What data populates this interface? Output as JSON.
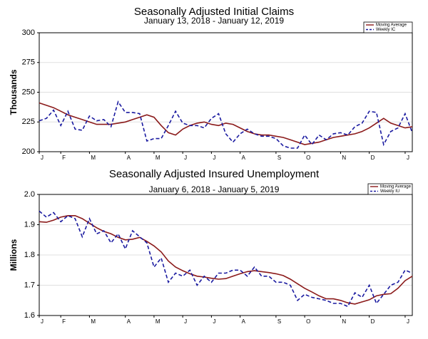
{
  "chart_data": [
    {
      "type": "line",
      "title": "Seasonally Adjusted Initial Claims",
      "subtitle": "January 13, 2018 - January 12, 2019",
      "y_label": "Thousands",
      "categories": [
        "J",
        null,
        null,
        "F",
        null,
        null,
        null,
        "M",
        null,
        null,
        null,
        null,
        "A",
        null,
        null,
        null,
        "M",
        null,
        null,
        null,
        "J",
        null,
        null,
        null,
        "J",
        null,
        null,
        null,
        "A",
        null,
        null,
        null,
        null,
        "S",
        null,
        null,
        null,
        "O",
        null,
        null,
        null,
        null,
        "N",
        null,
        null,
        null,
        "D",
        null,
        null,
        null,
        null,
        "J",
        null
      ],
      "ylim": [
        200,
        300
      ],
      "yticks": [
        200,
        225,
        250,
        275,
        300
      ],
      "grid": true,
      "series": [
        {
          "name": "Moving Average",
          "color": "#8b1a1a",
          "dashed": false,
          "values": [
            241,
            239,
            237,
            234,
            231,
            229,
            227,
            225,
            223,
            223,
            223,
            224,
            225,
            227,
            229,
            231,
            229,
            222,
            216,
            214,
            219,
            222,
            224,
            225,
            223,
            222,
            224,
            223,
            220,
            217,
            215,
            214,
            214,
            213,
            212,
            210,
            208,
            206,
            207,
            208,
            210,
            212,
            213,
            214,
            215,
            217,
            220,
            224,
            228,
            224,
            222,
            220,
            221
          ]
        },
        {
          "name": "Weekly IC",
          "color": "#1a1aa0",
          "dashed": true,
          "values": [
            226,
            228,
            235,
            222,
            234,
            219,
            218,
            230,
            226,
            227,
            221,
            242,
            233,
            233,
            232,
            209,
            211,
            211,
            222,
            234,
            224,
            222,
            222,
            220,
            228,
            232,
            215,
            208,
            215,
            219,
            215,
            213,
            213,
            211,
            205,
            203,
            203,
            214,
            206,
            214,
            210,
            215,
            216,
            214,
            221,
            224,
            234,
            233,
            206,
            217,
            220,
            232,
            216
          ]
        }
      ]
    },
    {
      "type": "line",
      "title": "Seasonally Adjusted Insured Unemployment",
      "subtitle": "January 6, 2018 - January 5, 2019",
      "y_label": "Millions",
      "categories": [
        "J",
        null,
        null,
        "F",
        null,
        null,
        null,
        "M",
        null,
        null,
        null,
        null,
        "A",
        null,
        null,
        null,
        "M",
        null,
        null,
        null,
        "J",
        null,
        null,
        null,
        "J",
        null,
        null,
        null,
        "A",
        null,
        null,
        null,
        null,
        "S",
        null,
        null,
        null,
        "O",
        null,
        null,
        null,
        null,
        "N",
        null,
        null,
        null,
        "D",
        null,
        null,
        null,
        null,
        "J",
        null
      ],
      "ylim": [
        1.6,
        2.0
      ],
      "yticks": [
        1.6,
        1.7,
        1.8,
        1.9,
        {
          "value": 2.0,
          "label": "2.0"
        }
      ],
      "grid": true,
      "series": [
        {
          "name": "Moving Average",
          "color": "#8b1a1a",
          "dashed": false,
          "values": [
            1.91,
            1.908,
            1.915,
            1.925,
            1.93,
            1.93,
            1.92,
            1.905,
            1.89,
            1.878,
            1.87,
            1.858,
            1.85,
            1.852,
            1.858,
            1.845,
            1.83,
            1.81,
            1.78,
            1.76,
            1.748,
            1.738,
            1.73,
            1.727,
            1.723,
            1.72,
            1.722,
            1.73,
            1.738,
            1.745,
            1.748,
            1.745,
            1.742,
            1.738,
            1.732,
            1.72,
            1.705,
            1.69,
            1.678,
            1.665,
            1.655,
            1.655,
            1.65,
            1.642,
            1.638,
            1.645,
            1.652,
            1.665,
            1.67,
            1.672,
            1.69,
            1.715,
            1.73
          ]
        },
        {
          "name": "Weekly IU",
          "color": "#1a1aa0",
          "dashed": true,
          "values": [
            1.945,
            1.925,
            1.94,
            1.91,
            1.93,
            1.92,
            1.86,
            1.92,
            1.87,
            1.88,
            1.84,
            1.87,
            1.82,
            1.88,
            1.86,
            1.84,
            1.76,
            1.79,
            1.71,
            1.74,
            1.73,
            1.75,
            1.7,
            1.73,
            1.71,
            1.74,
            1.74,
            1.75,
            1.75,
            1.73,
            1.76,
            1.73,
            1.73,
            1.71,
            1.71,
            1.7,
            1.65,
            1.67,
            1.66,
            1.655,
            1.65,
            1.64,
            1.64,
            1.63,
            1.675,
            1.66,
            1.7,
            1.64,
            1.67,
            1.7,
            1.71,
            1.75,
            1.74
          ]
        }
      ]
    }
  ]
}
